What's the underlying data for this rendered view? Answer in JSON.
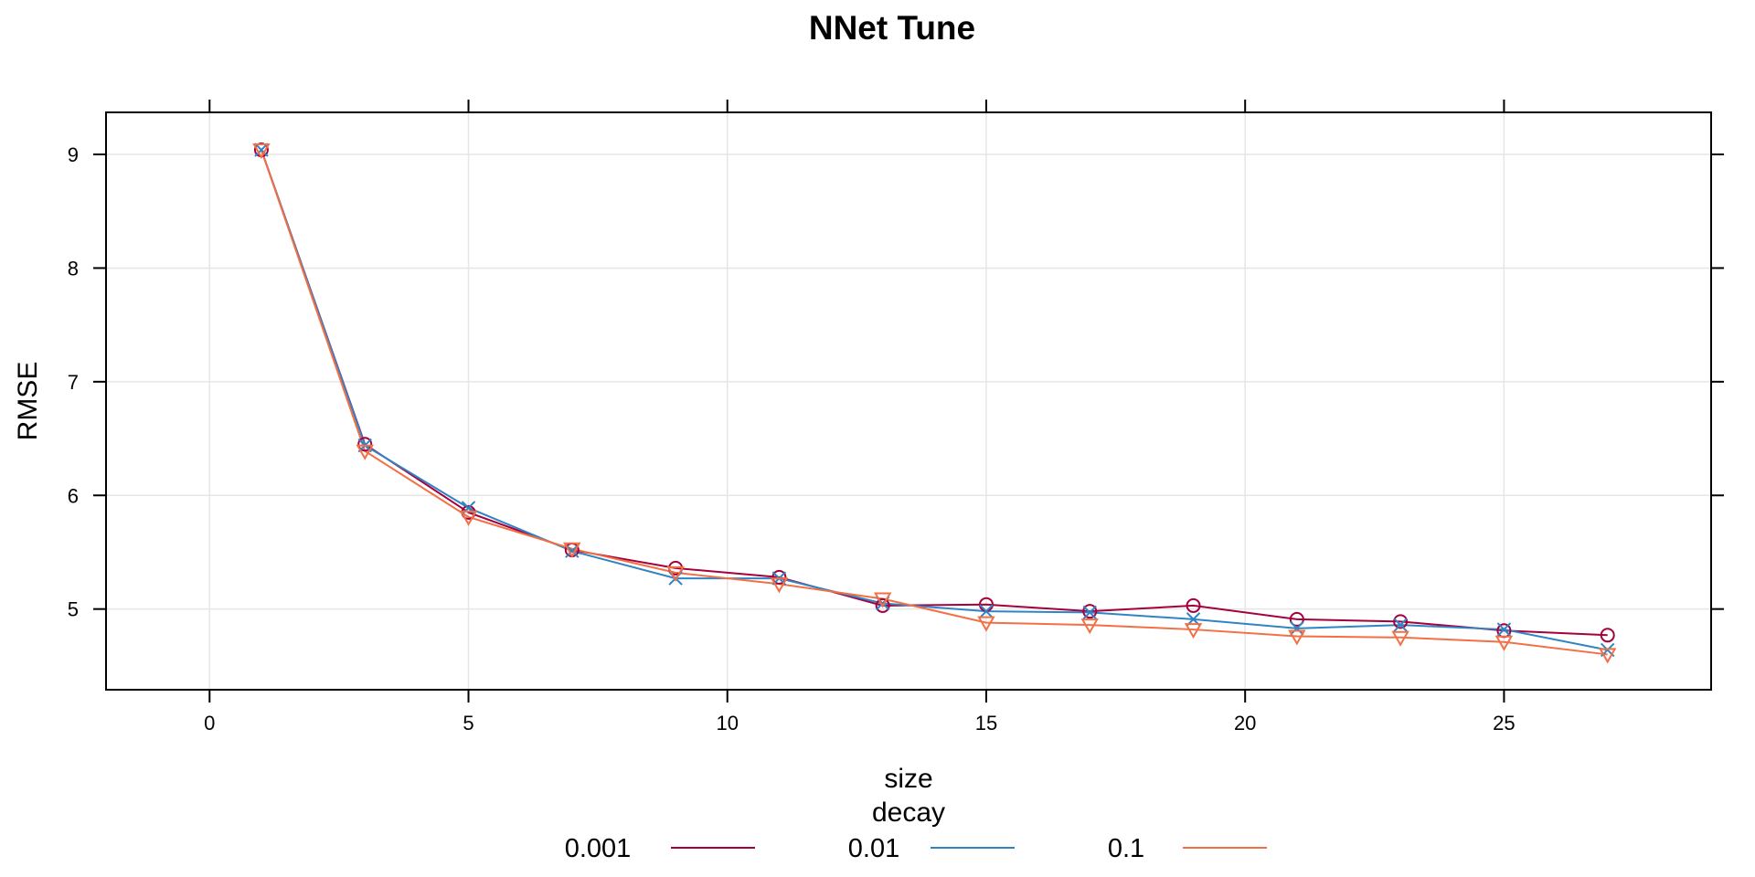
{
  "chart_data": {
    "type": "line",
    "title": "NNet Tune",
    "xlabel": "size",
    "ylabel": "RMSE",
    "xlim": [
      -2,
      29
    ],
    "ylim": [
      4.29,
      9.37
    ],
    "x_ticks": [
      0,
      5,
      10,
      15,
      20,
      25
    ],
    "x_tick_labels": [
      "0",
      "5",
      "10",
      "15",
      "20",
      "25"
    ],
    "y_ticks": [
      5,
      6,
      7,
      8,
      9
    ],
    "y_tick_labels": [
      "5",
      "6",
      "7",
      "8",
      "9"
    ],
    "grid": true,
    "legend": {
      "title": "decay",
      "position": "bottom"
    },
    "x": [
      1,
      3,
      5,
      7,
      9,
      11,
      13,
      15,
      17,
      19,
      21,
      23,
      25,
      27
    ],
    "series": [
      {
        "name": "0.001",
        "color": "#A6003D",
        "marker": "circle",
        "values": [
          9.04,
          6.45,
          5.85,
          5.52,
          5.36,
          5.28,
          5.03,
          5.04,
          4.98,
          5.03,
          4.91,
          4.89,
          4.81,
          4.77
        ]
      },
      {
        "name": "0.01",
        "color": "#2F84C5",
        "marker": "x",
        "values": [
          9.04,
          6.44,
          5.89,
          5.51,
          5.27,
          5.27,
          5.05,
          4.98,
          4.97,
          4.91,
          4.83,
          4.86,
          4.82,
          4.64
        ]
      },
      {
        "name": "0.1",
        "color": "#F36F44",
        "marker": "triangle-down",
        "values": [
          9.04,
          6.39,
          5.81,
          5.53,
          5.32,
          5.22,
          5.09,
          4.88,
          4.86,
          4.82,
          4.76,
          4.75,
          4.71,
          4.6
        ]
      }
    ]
  }
}
